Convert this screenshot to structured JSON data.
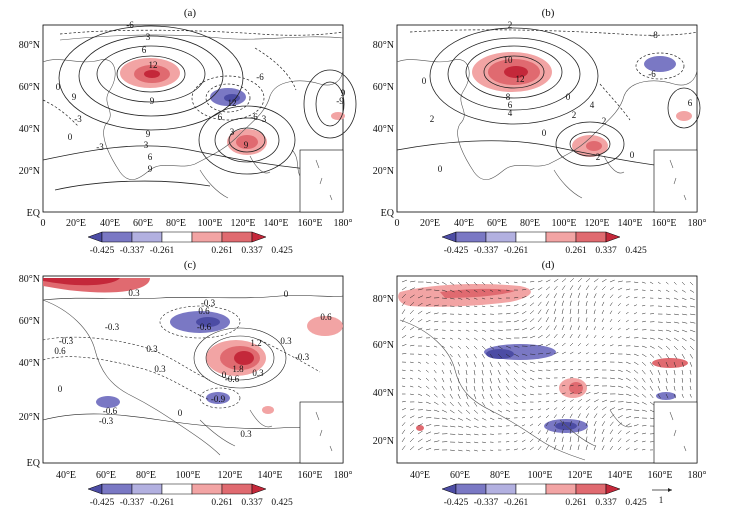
{
  "colors": {
    "dark_blue": "#4c4ca4",
    "mid_blue": "#7a78c4",
    "light_blue": "#b2b0e0",
    "white": "#ffffff",
    "light_red": "#f2a4a4",
    "mid_red": "#e06a70",
    "dark_red": "#c4283a",
    "contour": "#222222",
    "coast": "#555555"
  },
  "panels": [
    {
      "id": "a",
      "label": "(a)",
      "lat_labels": [
        "80°N",
        "60°N",
        "40°N",
        "20°N",
        "EQ"
      ],
      "lon_labels": [
        "0",
        "20°E",
        "40°E",
        "60°E",
        "80°E",
        "100°E",
        "120°E",
        "140°E",
        "160°E",
        "180°"
      ],
      "colorbar": [
        "-0.425",
        "-0.337",
        "-0.261",
        "0.261",
        "0.337",
        "0.425"
      ],
      "contour_labels": [
        "-6",
        "3",
        "6",
        "12",
        "9",
        "0",
        "9",
        "-3",
        "3",
        "-3",
        "9",
        "6",
        "6",
        "9",
        "-6",
        "12",
        "3",
        "0",
        "-6",
        "3",
        "9",
        "-9",
        "9"
      ]
    },
    {
      "id": "b",
      "label": "(b)",
      "lat_labels": [
        "80°N",
        "60°N",
        "40°N",
        "20°N",
        "EQ"
      ],
      "lon_labels": [
        "0",
        "20°E",
        "40°E",
        "60°E",
        "80°E",
        "100°E",
        "120°E",
        "140°E",
        "160°E",
        "180°"
      ],
      "colorbar": [
        "-0.425",
        "-0.337",
        "-0.261",
        "0.261",
        "0.337",
        "0.425"
      ],
      "contour_labels": [
        "2",
        "-8",
        "10",
        "8",
        "12",
        "6",
        "4",
        "-6",
        "0",
        "2",
        "2",
        "4",
        "2",
        "0",
        "0",
        "6",
        "0",
        "2",
        "0"
      ]
    },
    {
      "id": "c",
      "label": "(c)",
      "lat_labels": [
        "80°N",
        "60°N",
        "40°N",
        "20°N",
        "EQ"
      ],
      "lon_labels": [
        "40°E",
        "60°E",
        "80°E",
        "100°E",
        "120°E",
        "140°E",
        "160°E",
        "180°"
      ],
      "colorbar": [
        "-0.425",
        "-0.337",
        "-0.261",
        "0.261",
        "0.337",
        "0.425"
      ],
      "contour_labels": [
        "0.3",
        "-0.3",
        "0",
        "0.6",
        "-0.3",
        "-0.6",
        "0.6",
        "-0.3",
        "0.6",
        "0.3",
        "0.3",
        "1.2",
        "1.8",
        "0",
        "0.3",
        "-0.6",
        "-0.6",
        "-0.3",
        "-0.9",
        "0",
        "0.3",
        "0.3",
        "-0.3",
        "0"
      ]
    },
    {
      "id": "d",
      "label": "(d)",
      "lat_labels": [
        "80°N",
        "60°N",
        "40°N",
        "20°N"
      ],
      "lon_labels": [
        "60°E",
        "80°E",
        "100°E",
        "120°E",
        "140°E",
        "160°E",
        "180°"
      ],
      "extra_lon_label": "40°E",
      "colorbar": [
        "-0.425",
        "-0.337",
        "-0.261",
        "0.261",
        "0.337",
        "0.425"
      ],
      "reference_vector": "1"
    }
  ]
}
